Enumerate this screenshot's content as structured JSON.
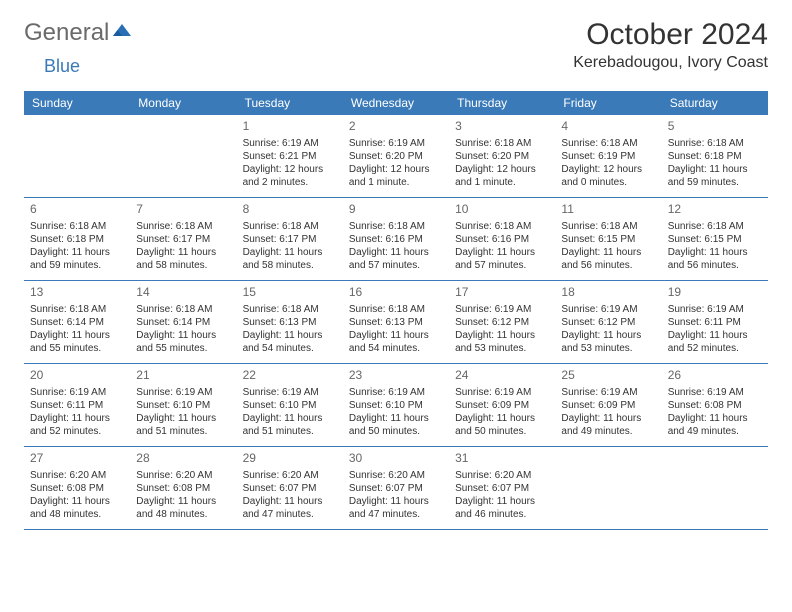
{
  "logo": {
    "text_main": "General",
    "text_sub": "Blue",
    "icon_color": "#2a6fb5"
  },
  "title": "October 2024",
  "location": "Kerebadougou, Ivory Coast",
  "colors": {
    "header_bg": "#3a7ab8",
    "header_text": "#ffffff",
    "text": "#333333",
    "daynum": "#666666",
    "divider": "#3a7ab8"
  },
  "day_names": [
    "Sunday",
    "Monday",
    "Tuesday",
    "Wednesday",
    "Thursday",
    "Friday",
    "Saturday"
  ],
  "weeks": [
    [
      null,
      null,
      {
        "n": "1",
        "sr": "Sunrise: 6:19 AM",
        "ss": "Sunset: 6:21 PM",
        "dl1": "Daylight: 12 hours",
        "dl2": "and 2 minutes."
      },
      {
        "n": "2",
        "sr": "Sunrise: 6:19 AM",
        "ss": "Sunset: 6:20 PM",
        "dl1": "Daylight: 12 hours",
        "dl2": "and 1 minute."
      },
      {
        "n": "3",
        "sr": "Sunrise: 6:18 AM",
        "ss": "Sunset: 6:20 PM",
        "dl1": "Daylight: 12 hours",
        "dl2": "and 1 minute."
      },
      {
        "n": "4",
        "sr": "Sunrise: 6:18 AM",
        "ss": "Sunset: 6:19 PM",
        "dl1": "Daylight: 12 hours",
        "dl2": "and 0 minutes."
      },
      {
        "n": "5",
        "sr": "Sunrise: 6:18 AM",
        "ss": "Sunset: 6:18 PM",
        "dl1": "Daylight: 11 hours",
        "dl2": "and 59 minutes."
      }
    ],
    [
      {
        "n": "6",
        "sr": "Sunrise: 6:18 AM",
        "ss": "Sunset: 6:18 PM",
        "dl1": "Daylight: 11 hours",
        "dl2": "and 59 minutes."
      },
      {
        "n": "7",
        "sr": "Sunrise: 6:18 AM",
        "ss": "Sunset: 6:17 PM",
        "dl1": "Daylight: 11 hours",
        "dl2": "and 58 minutes."
      },
      {
        "n": "8",
        "sr": "Sunrise: 6:18 AM",
        "ss": "Sunset: 6:17 PM",
        "dl1": "Daylight: 11 hours",
        "dl2": "and 58 minutes."
      },
      {
        "n": "9",
        "sr": "Sunrise: 6:18 AM",
        "ss": "Sunset: 6:16 PM",
        "dl1": "Daylight: 11 hours",
        "dl2": "and 57 minutes."
      },
      {
        "n": "10",
        "sr": "Sunrise: 6:18 AM",
        "ss": "Sunset: 6:16 PM",
        "dl1": "Daylight: 11 hours",
        "dl2": "and 57 minutes."
      },
      {
        "n": "11",
        "sr": "Sunrise: 6:18 AM",
        "ss": "Sunset: 6:15 PM",
        "dl1": "Daylight: 11 hours",
        "dl2": "and 56 minutes."
      },
      {
        "n": "12",
        "sr": "Sunrise: 6:18 AM",
        "ss": "Sunset: 6:15 PM",
        "dl1": "Daylight: 11 hours",
        "dl2": "and 56 minutes."
      }
    ],
    [
      {
        "n": "13",
        "sr": "Sunrise: 6:18 AM",
        "ss": "Sunset: 6:14 PM",
        "dl1": "Daylight: 11 hours",
        "dl2": "and 55 minutes."
      },
      {
        "n": "14",
        "sr": "Sunrise: 6:18 AM",
        "ss": "Sunset: 6:14 PM",
        "dl1": "Daylight: 11 hours",
        "dl2": "and 55 minutes."
      },
      {
        "n": "15",
        "sr": "Sunrise: 6:18 AM",
        "ss": "Sunset: 6:13 PM",
        "dl1": "Daylight: 11 hours",
        "dl2": "and 54 minutes."
      },
      {
        "n": "16",
        "sr": "Sunrise: 6:18 AM",
        "ss": "Sunset: 6:13 PM",
        "dl1": "Daylight: 11 hours",
        "dl2": "and 54 minutes."
      },
      {
        "n": "17",
        "sr": "Sunrise: 6:19 AM",
        "ss": "Sunset: 6:12 PM",
        "dl1": "Daylight: 11 hours",
        "dl2": "and 53 minutes."
      },
      {
        "n": "18",
        "sr": "Sunrise: 6:19 AM",
        "ss": "Sunset: 6:12 PM",
        "dl1": "Daylight: 11 hours",
        "dl2": "and 53 minutes."
      },
      {
        "n": "19",
        "sr": "Sunrise: 6:19 AM",
        "ss": "Sunset: 6:11 PM",
        "dl1": "Daylight: 11 hours",
        "dl2": "and 52 minutes."
      }
    ],
    [
      {
        "n": "20",
        "sr": "Sunrise: 6:19 AM",
        "ss": "Sunset: 6:11 PM",
        "dl1": "Daylight: 11 hours",
        "dl2": "and 52 minutes."
      },
      {
        "n": "21",
        "sr": "Sunrise: 6:19 AM",
        "ss": "Sunset: 6:10 PM",
        "dl1": "Daylight: 11 hours",
        "dl2": "and 51 minutes."
      },
      {
        "n": "22",
        "sr": "Sunrise: 6:19 AM",
        "ss": "Sunset: 6:10 PM",
        "dl1": "Daylight: 11 hours",
        "dl2": "and 51 minutes."
      },
      {
        "n": "23",
        "sr": "Sunrise: 6:19 AM",
        "ss": "Sunset: 6:10 PM",
        "dl1": "Daylight: 11 hours",
        "dl2": "and 50 minutes."
      },
      {
        "n": "24",
        "sr": "Sunrise: 6:19 AM",
        "ss": "Sunset: 6:09 PM",
        "dl1": "Daylight: 11 hours",
        "dl2": "and 50 minutes."
      },
      {
        "n": "25",
        "sr": "Sunrise: 6:19 AM",
        "ss": "Sunset: 6:09 PM",
        "dl1": "Daylight: 11 hours",
        "dl2": "and 49 minutes."
      },
      {
        "n": "26",
        "sr": "Sunrise: 6:19 AM",
        "ss": "Sunset: 6:08 PM",
        "dl1": "Daylight: 11 hours",
        "dl2": "and 49 minutes."
      }
    ],
    [
      {
        "n": "27",
        "sr": "Sunrise: 6:20 AM",
        "ss": "Sunset: 6:08 PM",
        "dl1": "Daylight: 11 hours",
        "dl2": "and 48 minutes."
      },
      {
        "n": "28",
        "sr": "Sunrise: 6:20 AM",
        "ss": "Sunset: 6:08 PM",
        "dl1": "Daylight: 11 hours",
        "dl2": "and 48 minutes."
      },
      {
        "n": "29",
        "sr": "Sunrise: 6:20 AM",
        "ss": "Sunset: 6:07 PM",
        "dl1": "Daylight: 11 hours",
        "dl2": "and 47 minutes."
      },
      {
        "n": "30",
        "sr": "Sunrise: 6:20 AM",
        "ss": "Sunset: 6:07 PM",
        "dl1": "Daylight: 11 hours",
        "dl2": "and 47 minutes."
      },
      {
        "n": "31",
        "sr": "Sunrise: 6:20 AM",
        "ss": "Sunset: 6:07 PM",
        "dl1": "Daylight: 11 hours",
        "dl2": "and 46 minutes."
      },
      null,
      null
    ]
  ]
}
